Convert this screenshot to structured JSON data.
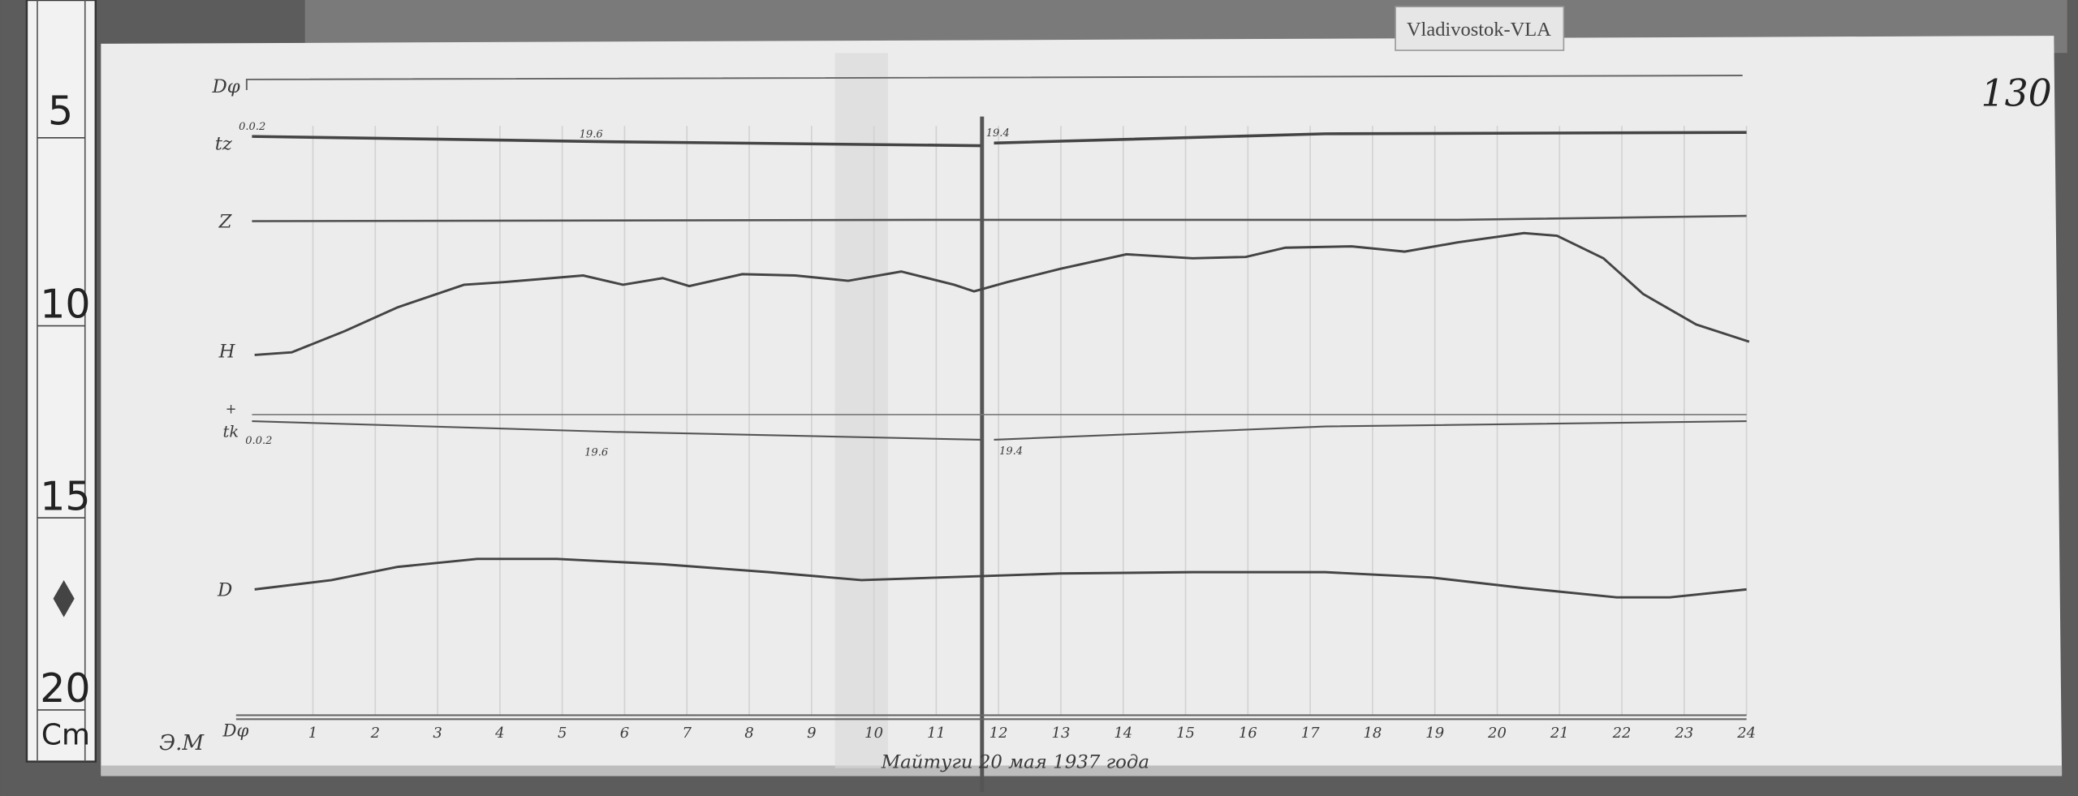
{
  "station_label": "Vladivostok-VLA",
  "sheet_number": "130",
  "ruler": {
    "marks": [
      "5",
      "10",
      "15",
      "20"
    ],
    "unit": "Cm"
  },
  "trace_labels": {
    "d_phi": "Dφ",
    "t_z": "tz",
    "t_z_scale": "0.0.2",
    "z": "Z",
    "h": "H",
    "h_sign": "+",
    "t_k": "tk",
    "t_k_scale": "0.0.2",
    "d": "D",
    "bottom_left": "Э.М",
    "bottom_axis": "Dφ"
  },
  "annotations": {
    "tz_left": "19.6",
    "tz_right": "19.4",
    "tk_left": "19.6",
    "tk_right": "19.4"
  },
  "hours": [
    "1",
    "2",
    "3",
    "4",
    "5",
    "6",
    "7",
    "8",
    "9",
    "10",
    "11",
    "12",
    "13",
    "14",
    "15",
    "16",
    "17",
    "18",
    "19",
    "20",
    "21",
    "22",
    "23",
    "24"
  ],
  "caption": "Майтуги 20 мая 1937 года",
  "colors": {
    "paper": "#ececec",
    "ink": "#4a4a4a",
    "background": "#5a5a5a"
  }
}
